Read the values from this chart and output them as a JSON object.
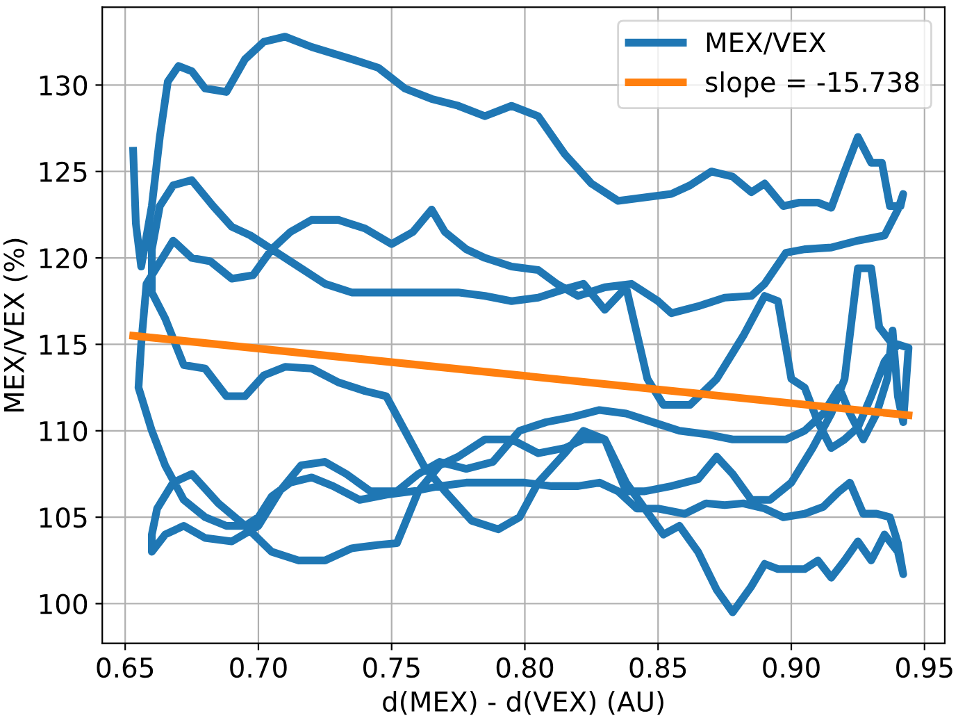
{
  "chart_data": {
    "type": "line",
    "xlabel": "d(MEX) - d(VEX) (AU)",
    "ylabel": "MEX/VEX (%)",
    "xlim": [
      0.6414,
      0.9576
    ],
    "ylim": [
      97.7,
      134.5
    ],
    "xticks": [
      {
        "value": 0.65,
        "label": "0.65"
      },
      {
        "value": 0.7,
        "label": "0.70"
      },
      {
        "value": 0.75,
        "label": "0.75"
      },
      {
        "value": 0.8,
        "label": "0.80"
      },
      {
        "value": 0.85,
        "label": "0.85"
      },
      {
        "value": 0.9,
        "label": "0.90"
      },
      {
        "value": 0.95,
        "label": "0.95"
      }
    ],
    "yticks": [
      100,
      105,
      110,
      115,
      120,
      125,
      130
    ],
    "grid": true,
    "legend": "top right",
    "marker": "none",
    "line_style": "solid",
    "series": [
      {
        "name": "MEX/VEX",
        "color": "#1f77b4",
        "x": [
          0.653,
          0.654,
          0.656,
          0.66,
          0.663,
          0.666,
          0.67,
          0.675,
          0.68,
          0.688,
          0.695,
          0.702,
          0.71,
          0.72,
          0.735,
          0.745,
          0.755,
          0.765,
          0.775,
          0.785,
          0.795,
          0.805,
          0.815,
          0.825,
          0.835,
          0.845,
          0.855,
          0.862,
          0.87,
          0.878,
          0.885,
          0.89,
          0.897,
          0.903,
          0.91,
          0.915,
          0.92,
          0.925,
          0.93,
          0.934,
          0.937,
          0.941,
          0.942,
          0.94,
          0.935,
          0.925,
          0.915,
          0.905,
          0.898,
          0.89,
          0.885,
          0.875,
          0.865,
          0.855,
          0.85,
          0.84,
          0.83,
          0.82,
          0.812,
          0.805,
          0.795,
          0.785,
          0.778,
          0.77,
          0.765,
          0.758,
          0.75,
          0.74,
          0.73,
          0.72,
          0.712,
          0.705,
          0.698,
          0.69,
          0.682,
          0.675,
          0.668,
          0.662,
          0.658,
          0.656,
          0.655,
          0.66,
          0.665,
          0.672,
          0.68,
          0.688,
          0.695,
          0.7,
          0.705,
          0.712,
          0.72,
          0.728,
          0.738,
          0.748,
          0.758,
          0.768,
          0.778,
          0.79,
          0.8,
          0.81,
          0.82,
          0.828,
          0.835,
          0.842,
          0.85,
          0.86,
          0.868,
          0.875,
          0.882,
          0.89,
          0.897,
          0.905,
          0.912,
          0.918,
          0.922,
          0.927,
          0.932,
          0.937,
          0.94,
          0.942,
          0.94,
          0.935,
          0.93,
          0.925,
          0.92,
          0.915,
          0.91,
          0.905,
          0.895,
          0.89,
          0.885,
          0.878,
          0.872,
          0.865,
          0.858,
          0.852,
          0.845,
          0.838,
          0.83,
          0.822,
          0.815,
          0.805,
          0.795,
          0.785,
          0.775,
          0.768,
          0.76,
          0.752,
          0.745,
          0.735,
          0.725,
          0.715,
          0.705,
          0.695,
          0.685,
          0.675,
          0.668,
          0.662,
          0.66,
          0.66,
          0.665,
          0.672,
          0.68,
          0.69,
          0.7,
          0.708,
          0.716,
          0.725,
          0.733,
          0.742,
          0.752,
          0.76,
          0.768,
          0.778,
          0.788,
          0.798,
          0.808,
          0.818,
          0.828,
          0.838,
          0.848,
          0.858,
          0.868,
          0.878,
          0.888,
          0.898,
          0.905,
          0.912,
          0.918,
          0.922,
          0.927,
          0.932,
          0.936,
          0.938,
          0.94,
          0.942,
          0.944,
          0.94,
          0.935,
          0.93,
          0.925,
          0.92,
          0.915,
          0.91,
          0.905,
          0.9,
          0.895,
          0.89,
          0.882,
          0.872,
          0.862,
          0.852,
          0.846,
          0.838,
          0.83,
          0.822,
          0.815,
          0.805,
          0.795,
          0.785,
          0.775,
          0.765,
          0.755,
          0.745,
          0.735,
          0.725,
          0.715,
          0.705,
          0.697,
          0.69,
          0.683,
          0.675,
          0.668,
          0.663,
          0.66,
          0.66,
          0.665,
          0.672,
          0.68,
          0.688,
          0.695,
          0.702,
          0.71,
          0.72,
          0.73,
          0.74,
          0.748,
          0.755,
          0.762,
          0.77,
          0.78,
          0.79,
          0.798,
          0.805,
          0.815,
          0.822,
          0.83,
          0.838,
          0.845,
          0.855,
          0.865,
          0.872,
          0.878,
          0.885,
          0.892,
          0.9,
          0.908,
          0.915,
          0.92,
          0.925,
          0.93,
          0.933,
          0.938
        ],
        "values": [
          126.2,
          122,
          119.5,
          123,
          127,
          130.2,
          131.1,
          130.8,
          129.8,
          129.6,
          131.5,
          132.5,
          132.8,
          132.2,
          131.5,
          131,
          129.8,
          129.2,
          128.8,
          128.2,
          128.8,
          128.2,
          126,
          124.3,
          123.3,
          123.5,
          123.7,
          124.2,
          125,
          124.7,
          123.8,
          124.3,
          123,
          123.2,
          123.2,
          122.9,
          125,
          127,
          125.5,
          125.5,
          123,
          123,
          123.7,
          122.8,
          121.3,
          121,
          120.6,
          120.5,
          120.3,
          118.5,
          117.8,
          117.7,
          117.2,
          116.8,
          117.5,
          118.5,
          118.3,
          117.8,
          118.5,
          119.3,
          119.5,
          120,
          120.5,
          121.5,
          122.8,
          121.5,
          120.8,
          121.7,
          122.2,
          122.2,
          121.5,
          120.5,
          119,
          118.8,
          119.8,
          120,
          121,
          119.5,
          118.5,
          115,
          112.5,
          110,
          108,
          106,
          105,
          104.5,
          104.5,
          105,
          106.2,
          107,
          107.3,
          106.8,
          106,
          106.3,
          106.5,
          106.8,
          107,
          107,
          107,
          106.8,
          106.8,
          107,
          106.5,
          105.5,
          105.5,
          105.2,
          105.8,
          105.7,
          105.8,
          105.5,
          105,
          105.2,
          105.6,
          106.5,
          107,
          105.2,
          105.2,
          105,
          103.5,
          101.7,
          103,
          104,
          102.5,
          103.6,
          102.5,
          101.5,
          102.5,
          102,
          102,
          102.3,
          101,
          99.5,
          100.8,
          103,
          104.5,
          104,
          105.5,
          107,
          109.5,
          109.5,
          109,
          108.7,
          109.5,
          109.5,
          108.5,
          108,
          106.5,
          103.5,
          103.4,
          103.2,
          102.5,
          102.5,
          103,
          104.5,
          105.8,
          107.5,
          107,
          105.5,
          104,
          103,
          104,
          104.5,
          103.8,
          103.6,
          104.5,
          106.5,
          108,
          108.2,
          107.5,
          106.5,
          106.5,
          107.5,
          108.2,
          107.8,
          108.2,
          110,
          110.5,
          110.8,
          111.2,
          111,
          110.5,
          110,
          109.8,
          109.5,
          109.5,
          109.5,
          110,
          111,
          112.5,
          111,
          109.5,
          111,
          113,
          115.8,
          112,
          110.5,
          114.8,
          115,
          114,
          112,
          110.2,
          109.5,
          109,
          110.5,
          112.5,
          113,
          117.5,
          117.8,
          115.5,
          113,
          111.5,
          111.5,
          113,
          118.3,
          117,
          118.5,
          118.2,
          117.7,
          117.5,
          117.8,
          118,
          118,
          118,
          118,
          118,
          118.5,
          119.5,
          120.5,
          121.3,
          121.8,
          123,
          124.5,
          124.2,
          123,
          120.5,
          118,
          116.5,
          113.8,
          113.6,
          112,
          112,
          113.2,
          113.7,
          113.6,
          112.8,
          112.3,
          112,
          110,
          108,
          106.5,
          104.8,
          104.3,
          105,
          107,
          108.7,
          110,
          109.5,
          106.5,
          106.5,
          106.8,
          107.2,
          108.5,
          107.5,
          106,
          106,
          107,
          109,
          111,
          113,
          119.4,
          119.4,
          116,
          115
        ]
      },
      {
        "name": "slope = -15.738",
        "color": "#ff7f0e",
        "x": [
          0.653,
          0.944
        ],
        "values": [
          115.5,
          110.9
        ]
      }
    ]
  }
}
